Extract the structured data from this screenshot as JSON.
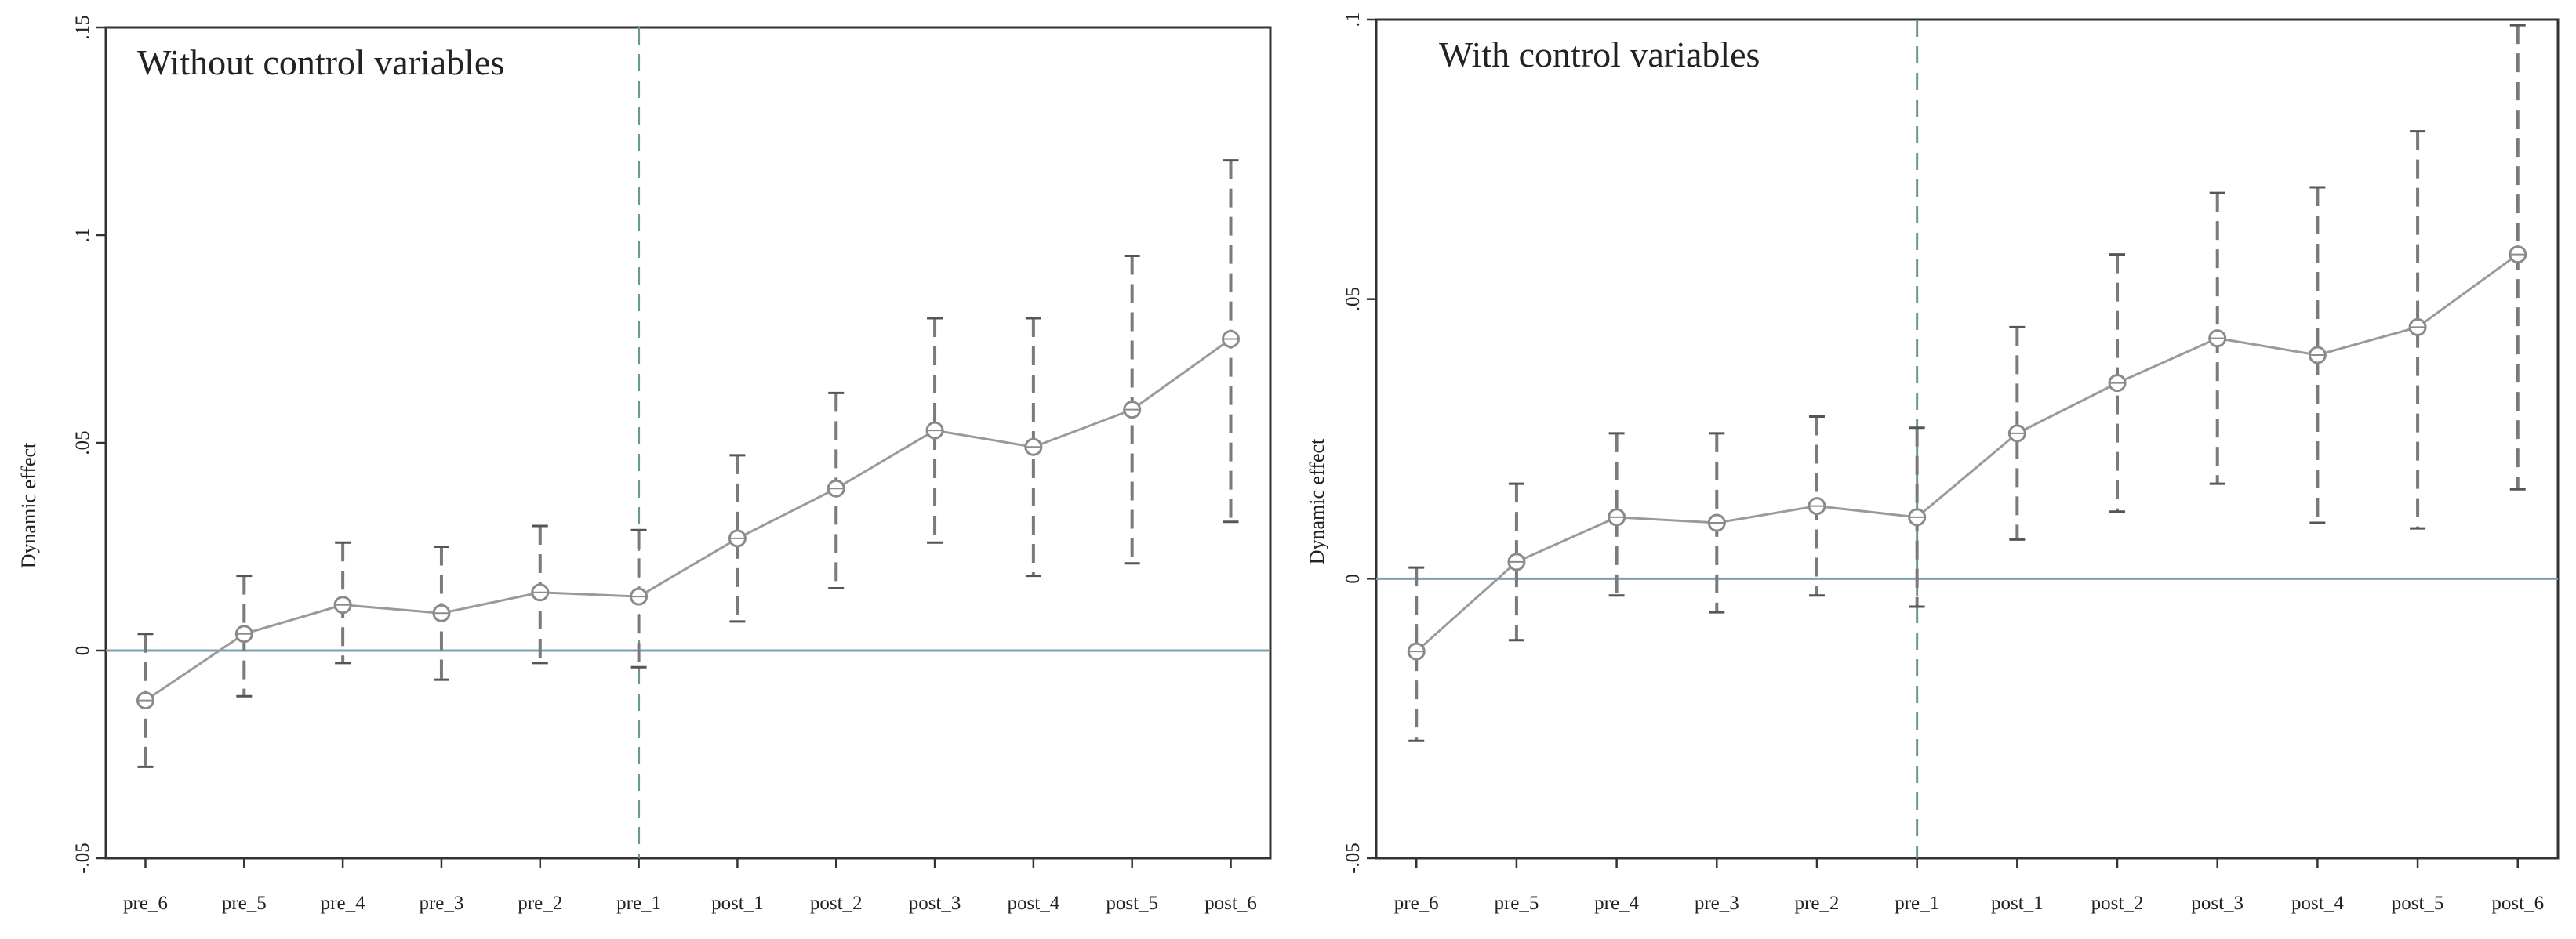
{
  "chart_data": [
    {
      "type": "line",
      "title": "Without control variables",
      "xlabel": "",
      "ylabel": "Dynamic effect",
      "ylim": [
        -0.05,
        0.15
      ],
      "yticks": [
        -0.05,
        0,
        0.05,
        0.1,
        0.15
      ],
      "ytick_labels": [
        "-.05",
        "0",
        ".05",
        ".1",
        ".15"
      ],
      "categories": [
        "pre_6",
        "pre_5",
        "pre_4",
        "pre_3",
        "pre_2",
        "pre_1",
        "post_1",
        "post_2",
        "post_3",
        "post_4",
        "post_5",
        "post_6"
      ],
      "values": [
        -0.012,
        0.004,
        0.011,
        0.009,
        0.014,
        0.013,
        0.027,
        0.039,
        0.053,
        0.049,
        0.058,
        0.075
      ],
      "ci_lower": [
        -0.028,
        -0.011,
        -0.003,
        -0.007,
        -0.003,
        -0.004,
        0.007,
        0.015,
        0.026,
        0.018,
        0.021,
        0.031
      ],
      "ci_upper": [
        0.004,
        0.018,
        0.026,
        0.025,
        0.03,
        0.029,
        0.047,
        0.062,
        0.08,
        0.08,
        0.095,
        0.118
      ],
      "reference_line_y": 0,
      "event_line_at": "pre_1",
      "grid": false
    },
    {
      "type": "line",
      "title": "With control variables",
      "xlabel": "",
      "ylabel": "Dynamic effect",
      "ylim": [
        -0.05,
        0.1
      ],
      "yticks": [
        -0.05,
        0,
        0.05,
        0.1
      ],
      "ytick_labels": [
        "-.05",
        "0",
        ".05",
        ".1"
      ],
      "categories": [
        "pre_6",
        "pre_5",
        "pre_4",
        "pre_3",
        "pre_2",
        "pre_1",
        "post_1",
        "post_2",
        "post_3",
        "post_4",
        "post_5",
        "post_6"
      ],
      "values": [
        -0.013,
        0.003,
        0.011,
        0.01,
        0.013,
        0.011,
        0.026,
        0.035,
        0.043,
        0.04,
        0.045,
        0.058
      ],
      "ci_lower": [
        -0.029,
        -0.011,
        -0.003,
        -0.006,
        -0.003,
        -0.005,
        0.007,
        0.012,
        0.017,
        0.01,
        0.009,
        0.016
      ],
      "ci_upper": [
        0.002,
        0.017,
        0.026,
        0.026,
        0.029,
        0.027,
        0.045,
        0.058,
        0.069,
        0.07,
        0.08,
        0.099
      ],
      "reference_line_y": 0,
      "event_line_at": "pre_1",
      "grid": false
    }
  ],
  "colors": {
    "series": "#9a9a9a",
    "ci": "#7a7a7a",
    "zero_line": "#7f9fb5",
    "event_line": "#6d9c86",
    "frame": "#333333"
  }
}
